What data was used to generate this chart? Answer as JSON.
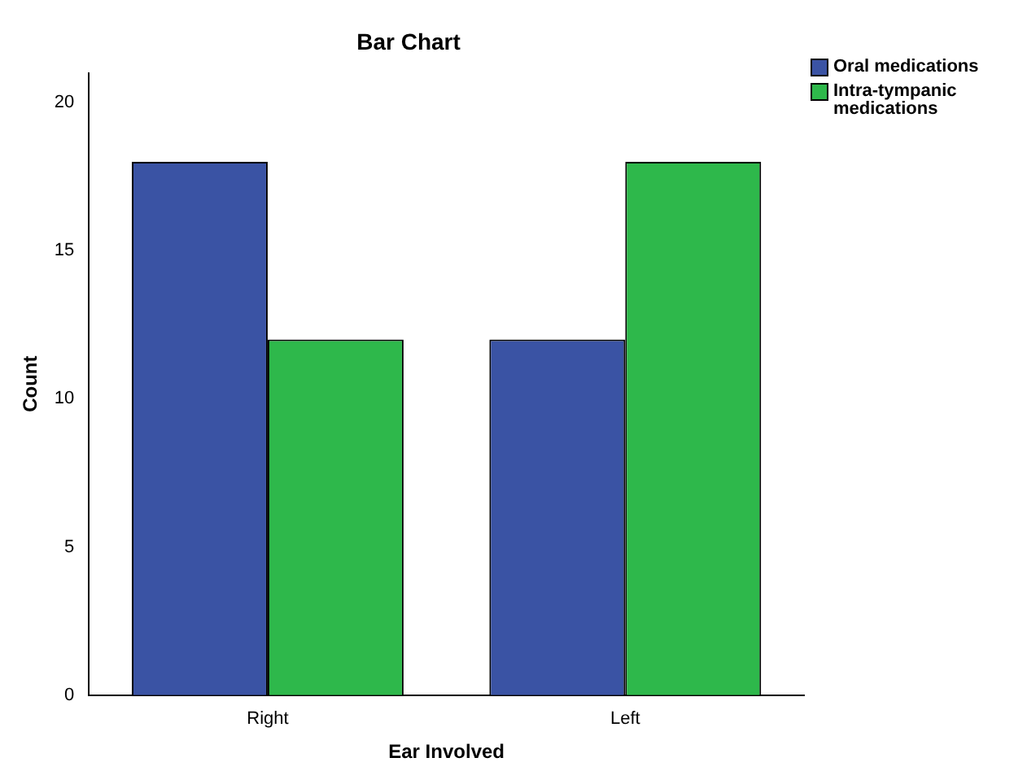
{
  "chart_data": {
    "type": "bar",
    "title": "Bar Chart",
    "xlabel": "Ear Involved",
    "ylabel": "Count",
    "categories": [
      "Right",
      "Left"
    ],
    "series": [
      {
        "name": "Oral medications",
        "color": "#3a53a4",
        "values": [
          18,
          12
        ]
      },
      {
        "name": "Intra-tympanic medications",
        "color": "#2eb84b",
        "values": [
          12,
          18
        ]
      }
    ],
    "ylim": [
      0,
      21
    ],
    "yticks": [
      0,
      5,
      10,
      15,
      20
    ],
    "grid": false,
    "legend": "top right"
  }
}
